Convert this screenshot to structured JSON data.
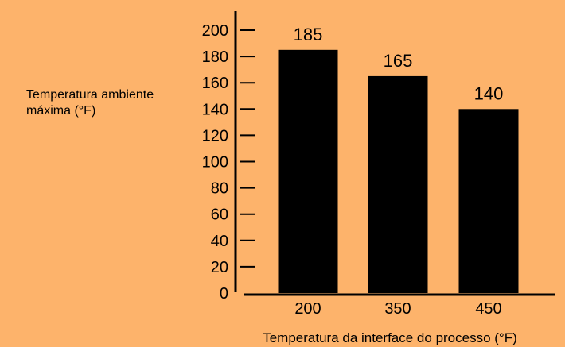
{
  "colors": {
    "background": "#FDB36B",
    "bar": "#000000",
    "axis": "#000000"
  },
  "chart_data": {
    "type": "bar",
    "title": "",
    "xlabel": "Temperatura da interface do processo (°F)",
    "ylabel_lines": [
      "Temperatura ambiente",
      "máxima (°F)"
    ],
    "categories": [
      "200",
      "350",
      "450"
    ],
    "values": [
      185,
      165,
      140
    ],
    "data_labels": [
      "185",
      "165",
      "140"
    ],
    "yticks": [
      0,
      20,
      40,
      60,
      80,
      100,
      120,
      140,
      160,
      180,
      200
    ],
    "ylim": [
      0,
      200
    ],
    "grid": false,
    "legend": "none"
  }
}
